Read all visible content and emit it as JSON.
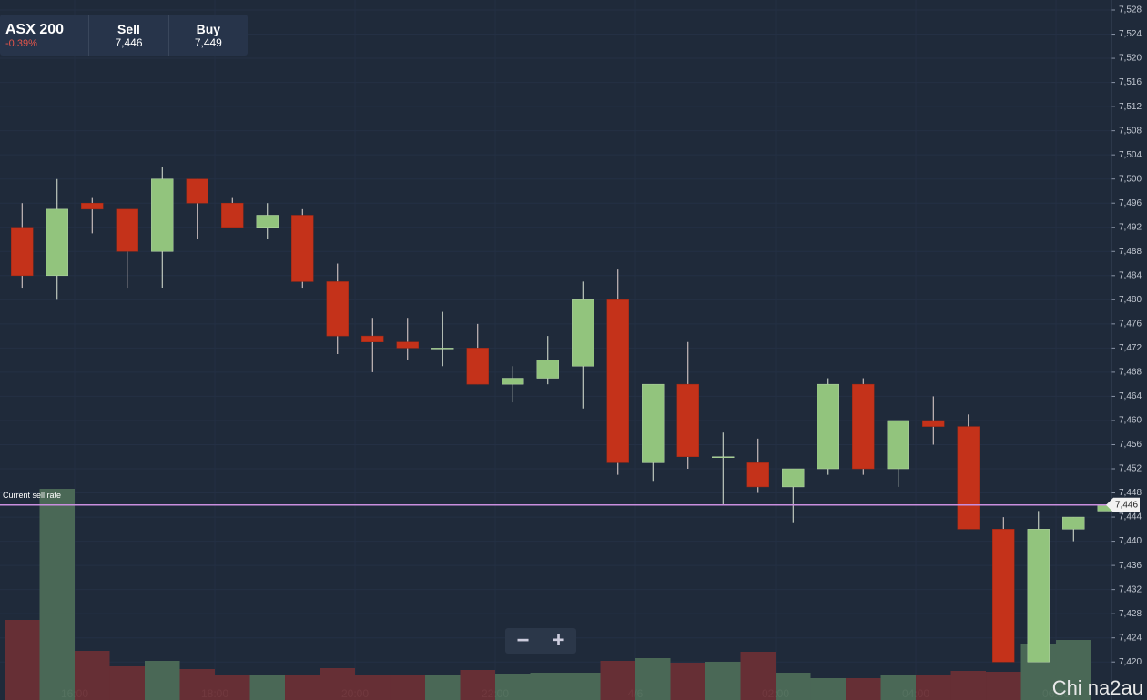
{
  "header": {
    "symbol": "ASX 200",
    "change": "-0.39%",
    "sell_label": "Sell",
    "sell": "7,446",
    "buy_label": "Buy",
    "buy": "7,449"
  },
  "chart_data": {
    "type": "candlestick",
    "x": [
      15.25,
      15.75,
      16.25,
      16.75,
      17.25,
      17.75,
      18.25,
      18.75,
      19.25,
      19.75,
      20.25,
      20.75,
      21.25,
      21.75,
      22.25,
      22.75,
      23.25,
      23.75,
      24.25,
      24.75,
      25.25,
      25.75,
      26.25,
      26.75,
      27.25,
      27.75,
      28.25,
      28.75,
      29.25,
      29.75,
      30.25,
      30.75
    ],
    "open": [
      7492,
      7484,
      7496,
      7495,
      7488,
      7500,
      7496,
      7492,
      7494,
      7483,
      7474,
      7473,
      7472,
      7472,
      7466,
      7467,
      7469,
      7480,
      7453,
      7466,
      7454,
      7453,
      7449,
      7452,
      7466,
      7452,
      7460,
      7459,
      7442,
      7420,
      7442,
      7445
    ],
    "high": [
      7496,
      7500,
      7497,
      7495,
      7502,
      7500,
      7497,
      7496,
      7495,
      7486,
      7477,
      7477,
      7478,
      7476,
      7469,
      7474,
      7483,
      7485,
      7466,
      7473,
      7458,
      7457,
      7452,
      7467,
      7467,
      7460,
      7464,
      7461,
      7444,
      7445,
      7444,
      7446
    ],
    "low": [
      7482,
      7480,
      7491,
      7482,
      7482,
      7490,
      7492,
      7490,
      7482,
      7471,
      7468,
      7470,
      7469,
      7466,
      7463,
      7466,
      7462,
      7451,
      7450,
      7452,
      7446,
      7448,
      7443,
      7451,
      7451,
      7449,
      7456,
      7442,
      7420,
      7420,
      7440,
      7445
    ],
    "close": [
      7484,
      7495,
      7495,
      7488,
      7500,
      7496,
      7492,
      7494,
      7483,
      7474,
      7473,
      7472,
      7472,
      7466,
      7467,
      7470,
      7480,
      7453,
      7466,
      7454,
      7454,
      7449,
      7452,
      7466,
      7452,
      7460,
      7459,
      7442,
      7420,
      7442,
      7444,
      7446
    ],
    "volume": [
      88,
      232,
      54,
      37,
      43,
      34,
      27,
      27,
      27,
      35,
      27,
      27,
      28,
      33,
      29,
      30,
      30,
      43,
      46,
      41,
      42,
      53,
      30,
      24,
      24,
      27,
      28,
      32,
      31,
      62,
      66,
      null
    ],
    "up_color": "#92c47d",
    "down_color": "#c4321a",
    "up_volume_color": "#4d6b57",
    "down_volume_color": "#6a2f35",
    "xlim": [
      14.935,
      30.792
    ],
    "xticks": [
      {
        "value": 16,
        "label": "16:00"
      },
      {
        "value": 18,
        "label": "18:00"
      },
      {
        "value": 20,
        "label": "20:00"
      },
      {
        "value": 22,
        "label": "22:00"
      },
      {
        "value": 24,
        "label": "4/6"
      },
      {
        "value": 26,
        "label": "02:00"
      },
      {
        "value": 28,
        "label": "04:00"
      },
      {
        "value": 30,
        "label": "06:00"
      }
    ],
    "ylim": [
      7413.7,
      7529.66
    ],
    "yticks": [
      {
        "value": 7420,
        "label": "7,420"
      },
      {
        "value": 7424,
        "label": "7,424"
      },
      {
        "value": 7428,
        "label": "7,428"
      },
      {
        "value": 7432,
        "label": "7,432"
      },
      {
        "value": 7436,
        "label": "7,436"
      },
      {
        "value": 7440,
        "label": "7,440"
      },
      {
        "value": 7444,
        "label": "7,444"
      },
      {
        "value": 7448,
        "label": "7,448"
      },
      {
        "value": 7452,
        "label": "7,452"
      },
      {
        "value": 7456,
        "label": "7,456"
      },
      {
        "value": 7460,
        "label": "7,460"
      },
      {
        "value": 7464,
        "label": "7,464"
      },
      {
        "value": 7468,
        "label": "7,468"
      },
      {
        "value": 7472,
        "label": "7,472"
      },
      {
        "value": 7476,
        "label": "7,476"
      },
      {
        "value": 7480,
        "label": "7,480"
      },
      {
        "value": 7484,
        "label": "7,484"
      },
      {
        "value": 7488,
        "label": "7,488"
      },
      {
        "value": 7492,
        "label": "7,492"
      },
      {
        "value": 7496,
        "label": "7,496"
      },
      {
        "value": 7500,
        "label": "7,500"
      },
      {
        "value": 7504,
        "label": "7,504"
      },
      {
        "value": 7508,
        "label": "7,508"
      },
      {
        "value": 7512,
        "label": "7,512"
      },
      {
        "value": 7516,
        "label": "7,516"
      },
      {
        "value": 7520,
        "label": "7,520"
      },
      {
        "value": 7524,
        "label": "7,524"
      },
      {
        "value": 7528,
        "label": "7,528"
      }
    ],
    "current_rate": {
      "label": "Current sell rate",
      "value": 7446,
      "value_label": "7,446",
      "color": "#c98ede"
    }
  },
  "controls": {
    "zoom_out": "−",
    "zoom_in": "+"
  },
  "watermark": "Chi na2au"
}
